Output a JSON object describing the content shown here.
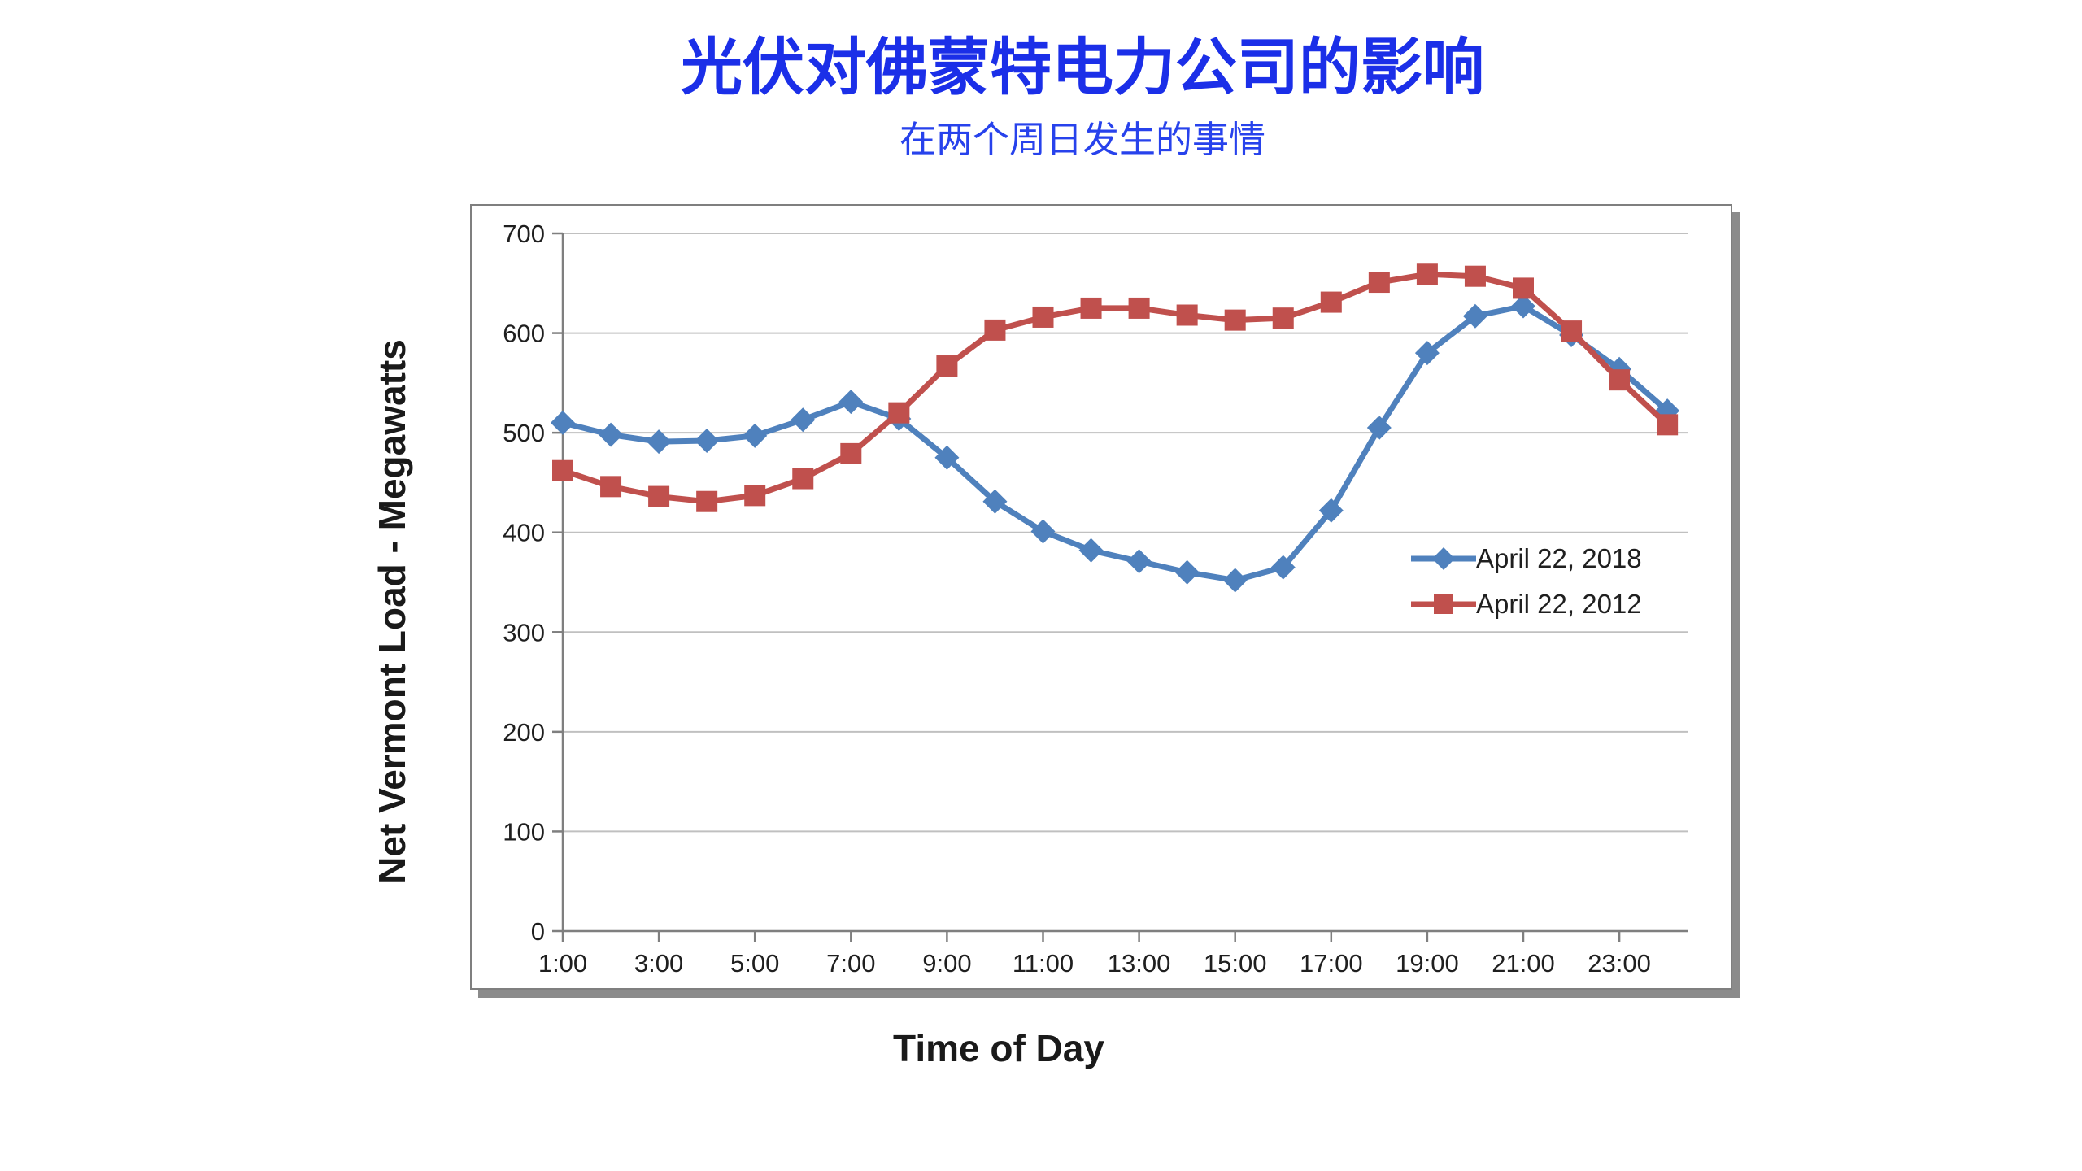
{
  "page": {
    "title": "光伏对佛蒙特电力公司的影响",
    "subtitle": "在两个周日发生的事情",
    "title_color": "#1b2fe8",
    "subtitle_color": "#2742ec"
  },
  "chart_data": {
    "type": "line",
    "xlabel": "Time of Day",
    "ylabel": "Net Vermont Load - Megawatts",
    "x_hours": [
      1,
      2,
      3,
      4,
      5,
      6,
      7,
      8,
      9,
      10,
      11,
      12,
      13,
      14,
      15,
      16,
      17,
      18,
      19,
      20,
      21,
      22,
      23,
      24
    ],
    "x_tick_labels": [
      "1:00",
      "3:00",
      "5:00",
      "7:00",
      "9:00",
      "11:00",
      "13:00",
      "15:00",
      "17:00",
      "19:00",
      "21:00",
      "23:00"
    ],
    "x_tick_hours": [
      1,
      3,
      5,
      7,
      9,
      11,
      13,
      15,
      17,
      19,
      21,
      23
    ],
    "y_ticks": [
      0,
      100,
      200,
      300,
      400,
      500,
      600,
      700
    ],
    "ylim": [
      0,
      700
    ],
    "grid": "horizontal",
    "legend_position": "inside-right",
    "colors": {
      "gridline": "#c0c0c0",
      "axis": "#7f7f7f",
      "tick_label": "#1f1f1f"
    },
    "series": [
      {
        "name": "April 22, 2018",
        "color": "#4f81bd",
        "marker": "diamond",
        "values": [
          510,
          498,
          491,
          492,
          497,
          513,
          531,
          514,
          475,
          431,
          401,
          382,
          371,
          360,
          352,
          365,
          422,
          505,
          580,
          617,
          627,
          598,
          564,
          522
        ]
      },
      {
        "name": "April 22, 2012",
        "color": "#c0504d",
        "marker": "square",
        "values": [
          462,
          446,
          436,
          431,
          437,
          454,
          479,
          520,
          567,
          603,
          616,
          625,
          625,
          618,
          613,
          615,
          631,
          651,
          659,
          657,
          645,
          602,
          553,
          508
        ]
      }
    ]
  }
}
